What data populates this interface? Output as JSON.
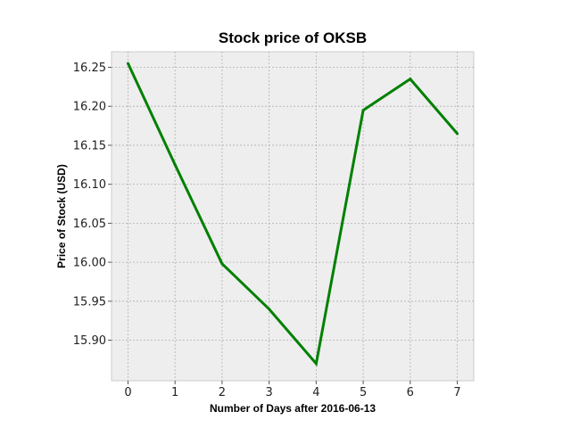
{
  "chart_data": {
    "type": "line",
    "title": "Stock price of OKSB",
    "xlabel": "Number of Days after 2016-06-13",
    "ylabel": "Price of Stock (USD)",
    "x": [
      0,
      1,
      2,
      3,
      4,
      5,
      6,
      7
    ],
    "series": [
      {
        "values": [
          16.255,
          16.125,
          15.998,
          15.94,
          15.87,
          16.195,
          16.235,
          16.165
        ]
      }
    ],
    "xlim": [
      -0.35,
      7.35
    ],
    "ylim": [
      15.848,
      16.27
    ],
    "xticks": [
      "0",
      "1",
      "2",
      "3",
      "4",
      "5",
      "6",
      "7"
    ],
    "yticks": [
      "15.90",
      "15.95",
      "16.00",
      "16.05",
      "16.10",
      "16.15",
      "16.20",
      "16.25"
    ],
    "grid": true,
    "colors": {
      "line": "#008000",
      "plot_background": "#eeeeee",
      "grid": "#b0b0b0",
      "frame": "#cccccc"
    }
  }
}
